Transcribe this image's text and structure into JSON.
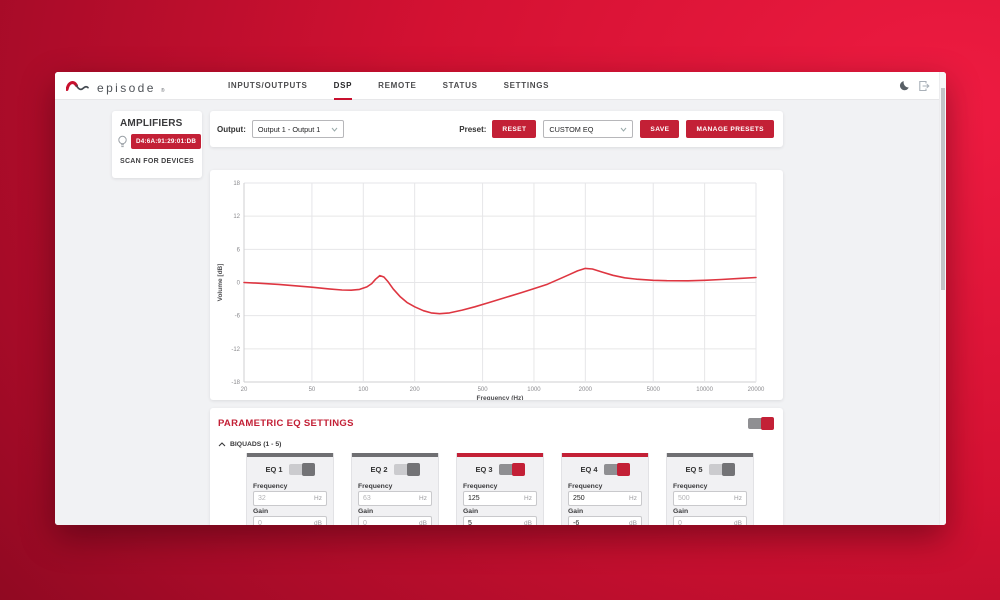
{
  "colors": {
    "accent_red": "#c32036",
    "brand_red": "#c8102e",
    "curve_red": "#de3641",
    "bg_gradient": [
      "#ee1b41",
      "#d31132",
      "#a60b28",
      "#75061a"
    ],
    "page_bg": "#f1f2f4"
  },
  "nav": {
    "brand": "episode",
    "brand_mark": "®",
    "items": [
      {
        "label": "INPUTS/OUTPUTS",
        "active": false
      },
      {
        "label": "DSP",
        "active": true
      },
      {
        "label": "REMOTE",
        "active": false
      },
      {
        "label": "STATUS",
        "active": false
      },
      {
        "label": "SETTINGS",
        "active": false
      }
    ],
    "icons": [
      "dark-mode-moon",
      "logout"
    ]
  },
  "sidebar": {
    "title": "AMPLIFIERS",
    "device": "D4:6A:91:29:01:DB",
    "scan_label": "SCAN FOR DEVICES"
  },
  "toolbar": {
    "output_label": "Output:",
    "output_value": "Output 1 - Output 1",
    "preset_label": "Preset:",
    "reset_label": "RESET",
    "preset_value": "CUSTOM EQ",
    "save_label": "SAVE",
    "manage_label": "MANAGE PRESETS"
  },
  "chart_data": {
    "type": "line",
    "title": "",
    "xlabel": "Frequency (Hz)",
    "ylabel": "Volume [dB]",
    "x_scale": "log",
    "xlim": [
      20,
      20000
    ],
    "ylim": [
      -18,
      18
    ],
    "x_ticks": [
      20,
      50,
      100,
      200,
      500,
      1000,
      2000,
      5000,
      10000,
      20000
    ],
    "y_ticks": [
      18,
      12,
      6,
      0,
      -6,
      -12,
      -18
    ],
    "grid": true,
    "legend": "none",
    "series": [
      {
        "name": "EQ frequency response",
        "color": "#de3641",
        "points": [
          [
            20,
            0
          ],
          [
            25,
            -0.15
          ],
          [
            32,
            -0.35
          ],
          [
            40,
            -0.6
          ],
          [
            50,
            -0.85
          ],
          [
            63,
            -1.15
          ],
          [
            75,
            -1.35
          ],
          [
            85,
            -1.4
          ],
          [
            95,
            -1.25
          ],
          [
            105,
            -0.8
          ],
          [
            112,
            -0.2
          ],
          [
            118,
            0.6
          ],
          [
            125,
            1.25
          ],
          [
            132,
            1.0
          ],
          [
            140,
            0.1
          ],
          [
            150,
            -1.2
          ],
          [
            165,
            -2.6
          ],
          [
            180,
            -3.6
          ],
          [
            200,
            -4.4
          ],
          [
            225,
            -5.1
          ],
          [
            250,
            -5.5
          ],
          [
            280,
            -5.65
          ],
          [
            320,
            -5.5
          ],
          [
            380,
            -5.0
          ],
          [
            450,
            -4.4
          ],
          [
            550,
            -3.6
          ],
          [
            700,
            -2.6
          ],
          [
            850,
            -1.8
          ],
          [
            1000,
            -1.1
          ],
          [
            1200,
            -0.3
          ],
          [
            1400,
            0.6
          ],
          [
            1600,
            1.4
          ],
          [
            1800,
            2.1
          ],
          [
            2000,
            2.55
          ],
          [
            2200,
            2.45
          ],
          [
            2500,
            1.9
          ],
          [
            2900,
            1.3
          ],
          [
            3400,
            0.85
          ],
          [
            4000,
            0.6
          ],
          [
            5000,
            0.4
          ],
          [
            6000,
            0.33
          ],
          [
            8000,
            0.3
          ],
          [
            10000,
            0.4
          ],
          [
            12500,
            0.55
          ],
          [
            16000,
            0.75
          ],
          [
            20000,
            0.9
          ]
        ]
      }
    ]
  },
  "eq": {
    "title": "PARAMETRIC EQ SETTINGS",
    "master_enabled": true,
    "group_label": "BIQUADS (1 - 5)",
    "freq_label": "Frequency",
    "gain_label": "Gain",
    "freq_unit": "Hz",
    "gain_unit": "dB",
    "bands": [
      {
        "name": "EQ 1",
        "enabled": false,
        "frequency": "32",
        "gain": "0"
      },
      {
        "name": "EQ 2",
        "enabled": false,
        "frequency": "63",
        "gain": "0"
      },
      {
        "name": "EQ 3",
        "enabled": true,
        "frequency": "125",
        "gain": "5"
      },
      {
        "name": "EQ 4",
        "enabled": true,
        "frequency": "250",
        "gain": "-6"
      },
      {
        "name": "EQ 5",
        "enabled": false,
        "frequency": "500",
        "gain": "0"
      }
    ]
  }
}
